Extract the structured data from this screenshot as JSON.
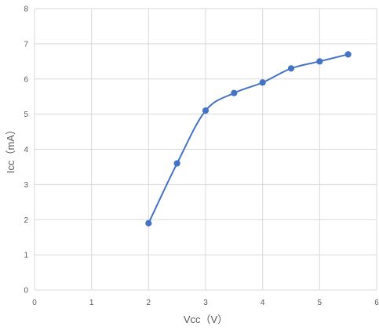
{
  "chart_data": {
    "type": "scatter",
    "title": "",
    "xlabel": "Vcc（V）",
    "ylabel": "Icc（mA）",
    "xlim": [
      0,
      6
    ],
    "ylim": [
      0,
      8
    ],
    "x_ticks": [
      0,
      1,
      2,
      3,
      4,
      5,
      6
    ],
    "y_ticks": [
      0,
      1,
      2,
      3,
      4,
      5,
      6,
      7,
      8
    ],
    "grid": true,
    "legend": "none",
    "line_style": "smooth",
    "colors": {
      "series": "#4472c4",
      "grid": "#d9d9d9",
      "axis_text": "#595959"
    },
    "series": [
      {
        "x": [
          2,
          2.5,
          3,
          3.5,
          4,
          4.5,
          5,
          5.5
        ],
        "y": [
          1.9,
          3.6,
          5.1,
          5.6,
          5.9,
          6.3,
          6.5,
          6.7
        ]
      }
    ]
  }
}
